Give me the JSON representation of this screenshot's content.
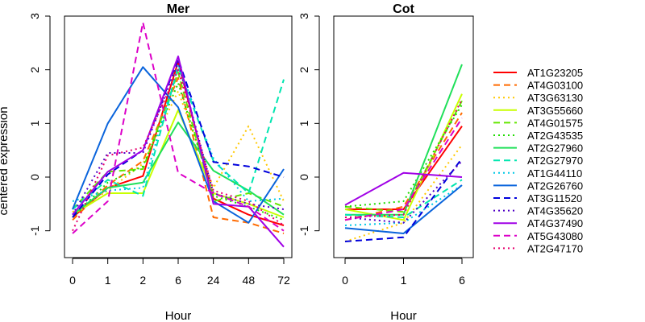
{
  "chart_data": {
    "type": "line",
    "ylabel": "centered expression",
    "xlabel": "Hour",
    "ylim": [
      -1.5,
      3
    ],
    "yticks": [
      -1,
      0,
      1,
      2,
      3
    ],
    "yticklabels": [
      "-1",
      "0",
      "1",
      "2",
      "3"
    ],
    "legend": {
      "position": "right"
    },
    "series_styles": [
      {
        "name": "AT1G23205",
        "color": "#ff0000",
        "dash": "solid"
      },
      {
        "name": "AT4G03100",
        "color": "#ff6a00",
        "dash": "dashed"
      },
      {
        "name": "AT3G63130",
        "color": "#ffc800",
        "dash": "dotted"
      },
      {
        "name": "AT3G55660",
        "color": "#c8ff00",
        "dash": "solid"
      },
      {
        "name": "AT4G01575",
        "color": "#64e600",
        "dash": "dashed"
      },
      {
        "name": "AT2G43535",
        "color": "#1edc00",
        "dash": "dotted"
      },
      {
        "name": "AT2G27960",
        "color": "#20e05a",
        "dash": "solid"
      },
      {
        "name": "AT2G27970",
        "color": "#00e6b0",
        "dash": "dashed"
      },
      {
        "name": "AT1G44110",
        "color": "#00c8e6",
        "dash": "dotted"
      },
      {
        "name": "AT2G26760",
        "color": "#0a64dc",
        "dash": "solid"
      },
      {
        "name": "AT3G11520",
        "color": "#0000dc",
        "dash": "dashed"
      },
      {
        "name": "AT4G35620",
        "color": "#5000c8",
        "dash": "dotted"
      },
      {
        "name": "AT4G37490",
        "color": "#a000e6",
        "dash": "solid"
      },
      {
        "name": "AT5G43080",
        "color": "#dc00c8",
        "dash": "dashed"
      },
      {
        "name": "AT2G47170",
        "color": "#e6006e",
        "dash": "dotted"
      }
    ],
    "panels": [
      {
        "title": "Mer",
        "x": [
          "0",
          "1",
          "2",
          "6",
          "24",
          "48",
          "72"
        ],
        "series": [
          {
            "name": "AT1G23205",
            "values": [
              -0.75,
              -0.2,
              0.02,
              2.15,
              -0.4,
              -0.7,
              -0.9
            ]
          },
          {
            "name": "AT4G03100",
            "values": [
              -0.8,
              -0.15,
              0.3,
              1.85,
              -0.75,
              -0.85,
              -1.05
            ]
          },
          {
            "name": "AT3G63130",
            "values": [
              -0.65,
              -0.25,
              0.25,
              1.6,
              -0.2,
              0.95,
              -0.45
            ]
          },
          {
            "name": "AT3G55660",
            "values": [
              -0.7,
              -0.3,
              -0.3,
              1.25,
              -0.3,
              -0.5,
              -0.75
            ]
          },
          {
            "name": "AT4G01575",
            "values": [
              -0.6,
              0.1,
              0.15,
              1.95,
              -0.45,
              -0.3,
              -0.55
            ]
          },
          {
            "name": "AT2G43535",
            "values": [
              -0.75,
              -0.1,
              0.2,
              1.75,
              -0.35,
              -0.55,
              -0.8
            ]
          },
          {
            "name": "AT2G27960",
            "values": [
              -0.7,
              -0.2,
              -0.1,
              1.02,
              0.12,
              -0.25,
              -0.7
            ]
          },
          {
            "name": "AT2G27970",
            "values": [
              -0.6,
              -0.05,
              -0.35,
              2.05,
              0.3,
              -0.3,
              1.82
            ]
          },
          {
            "name": "AT1G44110",
            "values": [
              -0.45,
              -0.25,
              -0.2,
              2.1,
              0.35,
              -0.45,
              -0.4
            ]
          },
          {
            "name": "AT2G26760",
            "values": [
              -0.6,
              1.0,
              2.05,
              1.3,
              -0.45,
              -0.85,
              0.15
            ]
          },
          {
            "name": "AT3G11520",
            "values": [
              -0.75,
              0.05,
              0.5,
              2.2,
              0.28,
              0.2,
              0.0
            ]
          },
          {
            "name": "AT4G35620",
            "values": [
              -0.7,
              0.45,
              0.45,
              2.15,
              -0.3,
              -0.5,
              -0.6
            ]
          },
          {
            "name": "AT4G37490",
            "values": [
              -0.7,
              0.1,
              0.5,
              2.25,
              -0.5,
              -0.55,
              -1.3
            ]
          },
          {
            "name": "AT5G43080",
            "values": [
              -1.05,
              -0.45,
              2.88,
              0.08,
              -0.3,
              -0.55,
              -1.0
            ]
          },
          {
            "name": "AT2G47170",
            "values": [
              -1.0,
              0.4,
              0.55,
              2.0,
              -0.25,
              -0.45,
              -0.9
            ]
          }
        ]
      },
      {
        "title": "Cot",
        "x": [
          "0",
          "1",
          "6"
        ],
        "series": [
          {
            "name": "AT1G23205",
            "values": [
              -0.6,
              -0.6,
              0.95
            ]
          },
          {
            "name": "AT4G03100",
            "values": [
              -0.8,
              -0.55,
              1.2
            ]
          },
          {
            "name": "AT3G63130",
            "values": [
              -1.2,
              -0.85,
              0.6
            ]
          },
          {
            "name": "AT3G55660",
            "values": [
              -0.6,
              -0.8,
              1.55
            ]
          },
          {
            "name": "AT4G01575",
            "values": [
              -0.55,
              -0.65,
              1.42
            ]
          },
          {
            "name": "AT2G43535",
            "values": [
              -0.55,
              -0.45,
              1.35
            ]
          },
          {
            "name": "AT2G27960",
            "values": [
              -0.7,
              -0.7,
              2.1
            ]
          },
          {
            "name": "AT2G27970",
            "values": [
              -0.7,
              -0.75,
              -0.05
            ]
          },
          {
            "name": "AT1G44110",
            "values": [
              -0.9,
              -0.85,
              -0.15
            ]
          },
          {
            "name": "AT2G26760",
            "values": [
              -0.95,
              -1.05,
              -0.15
            ]
          },
          {
            "name": "AT3G11520",
            "values": [
              -1.2,
              -1.12,
              0.35
            ]
          },
          {
            "name": "AT4G35620",
            "values": [
              -0.75,
              -0.85,
              0.3
            ]
          },
          {
            "name": "AT4G37490",
            "values": [
              -0.52,
              0.08,
              0.0
            ]
          },
          {
            "name": "AT5G43080",
            "values": [
              -0.8,
              -0.6,
              1.1
            ]
          },
          {
            "name": "AT2G47170",
            "values": [
              -0.75,
              -0.7,
              1.45
            ]
          }
        ]
      }
    ]
  }
}
